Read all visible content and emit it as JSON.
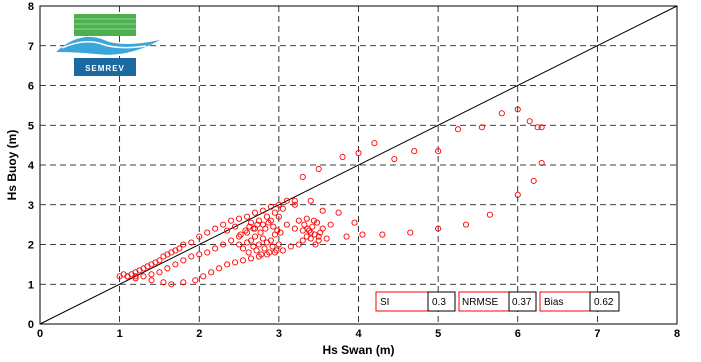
{
  "chart_data": {
    "type": "scatter",
    "xlabel": "Hs Swan (m)",
    "ylabel": "Hs Buoy (m)",
    "xlim": [
      0,
      8
    ],
    "ylim": [
      0,
      8
    ],
    "xticks": [
      "0",
      "1",
      "2",
      "3",
      "4",
      "5",
      "6",
      "7",
      "8"
    ],
    "yticks": [
      "0",
      "1",
      "2",
      "3",
      "4",
      "5",
      "6",
      "7",
      "8"
    ],
    "grid": true,
    "reference_line": "y = x",
    "marker_color": "#ff0000",
    "points": [
      [
        1.0,
        1.2
      ],
      [
        1.05,
        1.25
      ],
      [
        1.1,
        1.2
      ],
      [
        1.15,
        1.25
      ],
      [
        1.2,
        1.3
      ],
      [
        1.25,
        1.35
      ],
      [
        1.3,
        1.4
      ],
      [
        1.35,
        1.45
      ],
      [
        1.4,
        1.5
      ],
      [
        1.45,
        1.55
      ],
      [
        1.5,
        1.6
      ],
      [
        1.55,
        1.7
      ],
      [
        1.6,
        1.75
      ],
      [
        1.65,
        1.8
      ],
      [
        1.7,
        1.85
      ],
      [
        1.75,
        1.9
      ],
      [
        1.8,
        2.0
      ],
      [
        1.9,
        2.05
      ],
      [
        2.0,
        2.2
      ],
      [
        2.1,
        2.3
      ],
      [
        2.2,
        2.4
      ],
      [
        2.3,
        2.5
      ],
      [
        2.4,
        2.6
      ],
      [
        2.5,
        2.65
      ],
      [
        2.6,
        2.7
      ],
      [
        2.7,
        2.8
      ],
      [
        2.8,
        2.85
      ],
      [
        2.9,
        2.95
      ],
      [
        3.0,
        3.0
      ],
      [
        3.1,
        3.1
      ],
      [
        3.2,
        3.1
      ],
      [
        1.2,
        1.15
      ],
      [
        1.3,
        1.2
      ],
      [
        1.4,
        1.25
      ],
      [
        1.5,
        1.3
      ],
      [
        1.6,
        1.4
      ],
      [
        1.7,
        1.5
      ],
      [
        1.8,
        1.6
      ],
      [
        1.9,
        1.7
      ],
      [
        2.0,
        1.75
      ],
      [
        2.1,
        1.8
      ],
      [
        2.2,
        1.9
      ],
      [
        2.3,
        2.0
      ],
      [
        2.4,
        2.1
      ],
      [
        2.5,
        2.2
      ],
      [
        2.6,
        2.3
      ],
      [
        2.7,
        2.4
      ],
      [
        2.8,
        2.5
      ],
      [
        2.9,
        2.6
      ],
      [
        3.0,
        2.7
      ],
      [
        1.1,
        1.2
      ],
      [
        1.2,
        1.2
      ],
      [
        1.4,
        1.1
      ],
      [
        1.55,
        1.05
      ],
      [
        1.65,
        1.0
      ],
      [
        1.8,
        1.05
      ],
      [
        1.95,
        1.1
      ],
      [
        2.05,
        1.2
      ],
      [
        2.15,
        1.3
      ],
      [
        2.25,
        1.4
      ],
      [
        2.35,
        1.5
      ],
      [
        2.45,
        1.55
      ],
      [
        2.55,
        1.6
      ],
      [
        2.65,
        1.65
      ],
      [
        2.75,
        1.7
      ],
      [
        2.85,
        1.75
      ],
      [
        2.95,
        1.8
      ],
      [
        3.05,
        1.85
      ],
      [
        3.15,
        1.95
      ],
      [
        3.25,
        2.0
      ],
      [
        2.5,
        2.0
      ],
      [
        2.55,
        1.9
      ],
      [
        2.6,
        2.05
      ],
      [
        2.62,
        1.8
      ],
      [
        2.65,
        2.1
      ],
      [
        2.68,
        1.95
      ],
      [
        2.7,
        2.2
      ],
      [
        2.72,
        1.85
      ],
      [
        2.75,
        2.0
      ],
      [
        2.78,
        1.75
      ],
      [
        2.8,
        2.15
      ],
      [
        2.82,
        1.9
      ],
      [
        2.85,
        2.05
      ],
      [
        2.88,
        1.8
      ],
      [
        2.9,
        2.1
      ],
      [
        2.92,
        1.95
      ],
      [
        2.95,
        2.25
      ],
      [
        2.97,
        1.85
      ],
      [
        3.0,
        2.0
      ],
      [
        3.02,
        2.3
      ],
      [
        2.52,
        2.25
      ],
      [
        2.58,
        2.35
      ],
      [
        2.63,
        2.45
      ],
      [
        2.68,
        2.4
      ],
      [
        2.73,
        2.5
      ],
      [
        2.77,
        2.3
      ],
      [
        2.83,
        2.4
      ],
      [
        2.87,
        2.55
      ],
      [
        2.93,
        2.45
      ],
      [
        2.98,
        2.35
      ],
      [
        3.3,
        2.1
      ],
      [
        3.35,
        2.2
      ],
      [
        3.38,
        2.35
      ],
      [
        3.4,
        2.15
      ],
      [
        3.42,
        2.45
      ],
      [
        3.45,
        2.25
      ],
      [
        3.48,
        2.55
      ],
      [
        3.5,
        2.1
      ],
      [
        3.52,
        2.3
      ],
      [
        3.55,
        2.4
      ],
      [
        3.32,
        2.5
      ],
      [
        3.36,
        2.4
      ],
      [
        3.44,
        2.6
      ],
      [
        3.46,
        2.0
      ],
      [
        3.5,
        2.2
      ],
      [
        3.4,
        2.3
      ],
      [
        3.3,
        2.35
      ],
      [
        3.2,
        2.4
      ],
      [
        3.1,
        2.5
      ],
      [
        3.25,
        2.6
      ],
      [
        3.35,
        2.65
      ],
      [
        3.4,
        3.1
      ],
      [
        3.2,
        3.0
      ],
      [
        3.05,
        2.9
      ],
      [
        2.95,
        2.8
      ],
      [
        2.85,
        2.7
      ],
      [
        2.75,
        2.6
      ],
      [
        2.65,
        2.55
      ],
      [
        2.45,
        2.45
      ],
      [
        2.35,
        2.35
      ],
      [
        3.3,
        3.7
      ],
      [
        3.5,
        3.9
      ],
      [
        3.8,
        4.2
      ],
      [
        4.0,
        4.3
      ],
      [
        4.2,
        4.55
      ],
      [
        4.45,
        4.15
      ],
      [
        4.7,
        4.35
      ],
      [
        5.0,
        4.35
      ],
      [
        5.25,
        4.9
      ],
      [
        5.55,
        4.95
      ],
      [
        5.8,
        5.3
      ],
      [
        6.0,
        5.4
      ],
      [
        6.15,
        5.1
      ],
      [
        6.25,
        4.95
      ],
      [
        6.3,
        4.95
      ],
      [
        6.3,
        4.05
      ],
      [
        6.2,
        3.6
      ],
      [
        6.0,
        3.25
      ],
      [
        5.65,
        2.75
      ],
      [
        5.35,
        2.5
      ],
      [
        5.0,
        2.4
      ],
      [
        4.65,
        2.3
      ],
      [
        4.3,
        2.25
      ],
      [
        4.05,
        2.25
      ],
      [
        3.85,
        2.2
      ],
      [
        3.6,
        2.15
      ],
      [
        3.75,
        2.8
      ],
      [
        3.55,
        2.85
      ],
      [
        3.95,
        2.55
      ],
      [
        3.65,
        2.5
      ]
    ],
    "stats": [
      {
        "label": "SI",
        "value": "0.3"
      },
      {
        "label": "NRMSE",
        "value": "0.37"
      },
      {
        "label": "Bias",
        "value": "0.62"
      }
    ]
  },
  "logo": {
    "text": "SEMREV",
    "colors": {
      "green": "#4caf50",
      "blue": "#1a6aa0",
      "wave": "#3aa6d9"
    }
  }
}
